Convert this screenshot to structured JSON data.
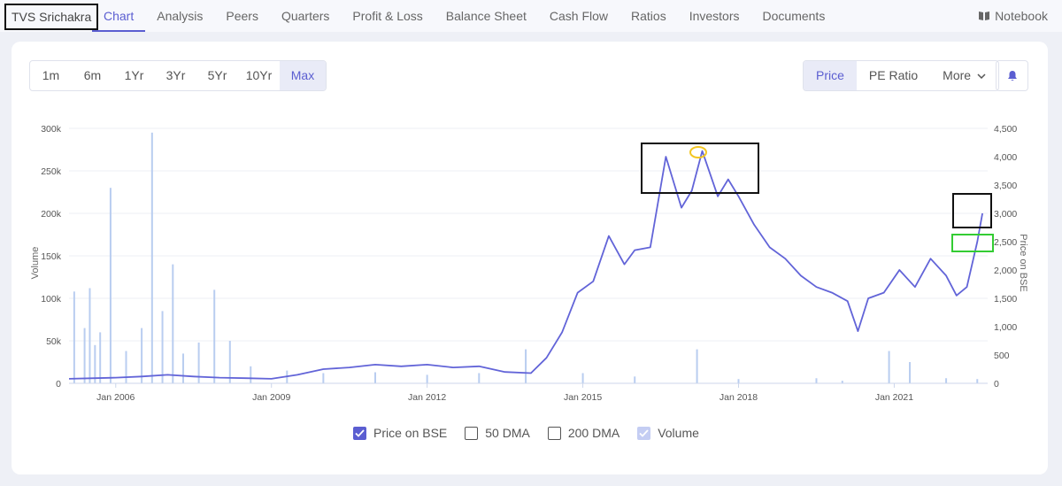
{
  "nav": {
    "company": "TVS Srichakra",
    "tabs": [
      "Chart",
      "Analysis",
      "Peers",
      "Quarters",
      "Profit & Loss",
      "Balance Sheet",
      "Cash Flow",
      "Ratios",
      "Investors",
      "Documents"
    ],
    "notebook": "Notebook"
  },
  "periods": [
    "1m",
    "6m",
    "1Yr",
    "3Yr",
    "5Yr",
    "10Yr",
    "Max"
  ],
  "metrics": {
    "price": "Price",
    "pe": "PE Ratio",
    "more": "More"
  },
  "legend": {
    "price": "Price on BSE",
    "dma50": "50 DMA",
    "dma200": "200 DMA",
    "volume": "Volume"
  },
  "colors": {
    "accent": "#5b5ed1",
    "price_line": "#6264d8",
    "volume_bar": "#b9cdf0",
    "highlight_black": "#111111",
    "highlight_green": "#33cc33",
    "highlight_yellow": "#f3c623"
  },
  "chart_data": {
    "type": "line",
    "ylabel_left": "Volume",
    "ylabel_right": "Price on BSE",
    "x_ticks": [
      "Jan 2006",
      "Jan 2009",
      "Jan 2012",
      "Jan 2015",
      "Jan 2018",
      "Jan 2021"
    ],
    "y_left_ticks": [
      "0",
      "50k",
      "100k",
      "150k",
      "200k",
      "250k",
      "300k"
    ],
    "y_right_ticks": [
      "0",
      "500",
      "1,000",
      "1,500",
      "2,000",
      "2,500",
      "3,000",
      "3,500",
      "4,000",
      "4,500"
    ],
    "ylim_left": [
      0,
      300000
    ],
    "ylim_right": [
      0,
      4500
    ],
    "xlim": [
      2005.1,
      2022.8
    ],
    "grid": true,
    "series": [
      {
        "name": "Price on BSE",
        "x": [
          2005.1,
          2005.6,
          2006.0,
          2006.5,
          2007.0,
          2007.5,
          2008.0,
          2008.5,
          2009.0,
          2009.5,
          2010.0,
          2010.5,
          2011.0,
          2011.5,
          2012.0,
          2012.5,
          2013.0,
          2013.5,
          2014.0,
          2014.3,
          2014.6,
          2014.9,
          2015.2,
          2015.5,
          2015.8,
          2016.0,
          2016.3,
          2016.6,
          2016.9,
          2017.1,
          2017.3,
          2017.6,
          2017.8,
          2018.0,
          2018.3,
          2018.6,
          2018.9,
          2019.2,
          2019.5,
          2019.8,
          2020.1,
          2020.3,
          2020.5,
          2020.8,
          2021.1,
          2021.4,
          2021.7,
          2022.0,
          2022.2,
          2022.4,
          2022.6,
          2022.7
        ],
        "values": [
          80,
          90,
          100,
          120,
          150,
          120,
          100,
          90,
          80,
          150,
          250,
          280,
          330,
          300,
          330,
          280,
          300,
          200,
          180,
          450,
          900,
          1600,
          1800,
          2600,
          2100,
          2350,
          2400,
          4000,
          3100,
          3400,
          4100,
          3300,
          3600,
          3300,
          2800,
          2400,
          2200,
          1900,
          1700,
          1600,
          1450,
          920,
          1500,
          1600,
          2000,
          1700,
          2200,
          1900,
          1550,
          1700,
          2500,
          3000
        ]
      },
      {
        "name": "Volume",
        "x": [
          2005.2,
          2005.4,
          2005.5,
          2005.6,
          2005.7,
          2005.9,
          2006.2,
          2006.5,
          2006.7,
          2006.9,
          2007.1,
          2007.3,
          2007.6,
          2007.9,
          2008.2,
          2008.6,
          2009.3,
          2010.0,
          2011.0,
          2012.0,
          2013.0,
          2013.9,
          2015.0,
          2016.0,
          2017.2,
          2018.0,
          2019.5,
          2020.0,
          2020.9,
          2021.3,
          2022.0,
          2022.6
        ],
        "values": [
          108000,
          65000,
          112000,
          45000,
          60000,
          230000,
          38000,
          65000,
          295000,
          85000,
          140000,
          35000,
          48000,
          110000,
          50000,
          20000,
          15000,
          12000,
          13000,
          10000,
          12000,
          40000,
          12000,
          8000,
          40000,
          5000,
          6000,
          3000,
          38000,
          25000,
          6000,
          5000
        ]
      }
    ]
  }
}
